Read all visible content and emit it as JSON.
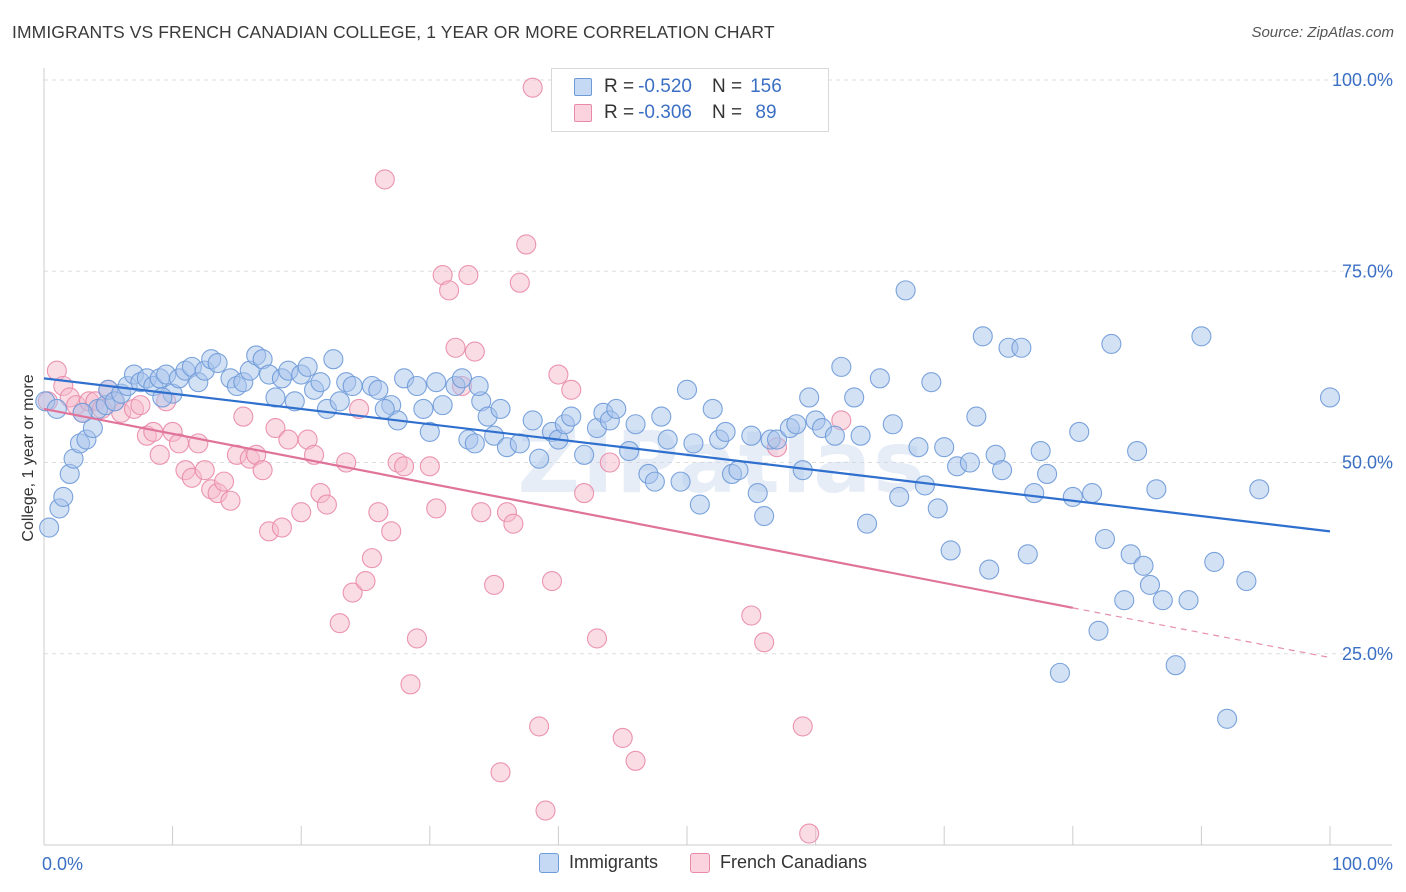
{
  "title": "IMMIGRANTS VS FRENCH CANADIAN COLLEGE, 1 YEAR OR MORE CORRELATION CHART",
  "source": "Source: ZipAtlas.com",
  "watermark": "ZIPatlas",
  "colors": {
    "blue_fill": "#a8c4ec",
    "blue_stroke": "#6e9ad8",
    "blue_line": "#2f6fce",
    "pink_fill": "#f6b9cb",
    "pink_stroke": "#e98aa8",
    "pink_line": "#e0739a",
    "axis_text": "#3b6fc4",
    "grid": "#dddddd"
  },
  "legend_top": {
    "series": [
      {
        "r_label": "R = ",
        "r_value": "-0.520",
        "n_label": "N = ",
        "n_value": "156",
        "color": "blue"
      },
      {
        "r_label": "R = ",
        "r_value": "-0.306",
        "n_label": "N = ",
        "n_value": " 89",
        "color": "pink"
      }
    ]
  },
  "legend_bottom": {
    "items": [
      {
        "label": "Immigrants",
        "color": "blue"
      },
      {
        "label": "French Canadians",
        "color": "pink"
      }
    ]
  },
  "chart_data": {
    "type": "scatter",
    "title": "IMMIGRANTS VS FRENCH CANADIAN COLLEGE, 1 YEAR OR MORE CORRELATION CHART",
    "xlabel": "",
    "ylabel": "College, 1 year or more",
    "xlim": [
      0,
      100
    ],
    "ylim": [
      0,
      100
    ],
    "x_tick_labels": [
      {
        "value": 0,
        "label": "0.0%"
      },
      {
        "value": 100,
        "label": "100.0%"
      }
    ],
    "y_tick_labels": [
      {
        "value": 25,
        "label": "25.0%"
      },
      {
        "value": 50,
        "label": "50.0%"
      },
      {
        "value": 75,
        "label": "75.0%"
      },
      {
        "value": 100,
        "label": "100.0%"
      }
    ],
    "grid": true,
    "legend_position": "top-center",
    "series": [
      {
        "name": "Immigrants",
        "color": "blue",
        "r": -0.52,
        "n": 156,
        "trend": {
          "x": [
            0,
            100
          ],
          "y": [
            61.0,
            41.0
          ]
        },
        "points": [
          [
            0.4,
            41.5
          ],
          [
            1.2,
            44.0
          ],
          [
            1.5,
            45.5
          ],
          [
            2.0,
            48.5
          ],
          [
            2.3,
            50.5
          ],
          [
            2.8,
            52.5
          ],
          [
            3.3,
            53.0
          ],
          [
            3.8,
            54.5
          ],
          [
            4.2,
            57.0
          ],
          [
            4.8,
            57.5
          ],
          [
            5.0,
            59.5
          ],
          [
            5.5,
            58.0
          ],
          [
            6.0,
            59.0
          ],
          [
            6.5,
            60.0
          ],
          [
            7.0,
            61.5
          ],
          [
            7.5,
            60.5
          ],
          [
            8.0,
            61.0
          ],
          [
            8.5,
            60.0
          ],
          [
            9.0,
            61.0
          ],
          [
            9.5,
            61.5
          ],
          [
            10.0,
            59.0
          ],
          [
            10.5,
            61.0
          ],
          [
            11.0,
            62.0
          ],
          [
            11.5,
            62.5
          ],
          [
            12.0,
            60.5
          ],
          [
            12.5,
            62.0
          ],
          [
            13.0,
            63.5
          ],
          [
            13.5,
            63.0
          ],
          [
            14.5,
            61.0
          ],
          [
            15.0,
            60.0
          ],
          [
            15.5,
            60.5
          ],
          [
            16.0,
            62.0
          ],
          [
            16.5,
            64.0
          ],
          [
            17.0,
            63.5
          ],
          [
            17.5,
            61.5
          ],
          [
            18.0,
            58.5
          ],
          [
            18.5,
            61.0
          ],
          [
            19.0,
            62.0
          ],
          [
            19.5,
            58.0
          ],
          [
            20.0,
            61.5
          ],
          [
            20.5,
            62.5
          ],
          [
            21.0,
            59.5
          ],
          [
            21.5,
            60.5
          ],
          [
            22.0,
            57.0
          ],
          [
            22.5,
            63.5
          ],
          [
            23.0,
            58.0
          ],
          [
            23.5,
            60.5
          ],
          [
            24.0,
            60.0
          ],
          [
            25.5,
            60.0
          ],
          [
            26.0,
            59.5
          ],
          [
            27.0,
            57.5
          ],
          [
            27.5,
            55.5
          ],
          [
            28.0,
            61.0
          ],
          [
            29.0,
            60.0
          ],
          [
            29.5,
            57.0
          ],
          [
            30.0,
            54.0
          ],
          [
            30.5,
            60.5
          ],
          [
            31.0,
            57.5
          ],
          [
            32.0,
            60.0
          ],
          [
            32.5,
            61.0
          ],
          [
            33.0,
            53.0
          ],
          [
            33.5,
            52.5
          ],
          [
            34.0,
            58.0
          ],
          [
            34.5,
            56.0
          ],
          [
            35.0,
            53.5
          ],
          [
            35.5,
            57.0
          ],
          [
            36.0,
            52.0
          ],
          [
            37.0,
            52.5
          ],
          [
            38.0,
            55.5
          ],
          [
            38.5,
            50.5
          ],
          [
            39.5,
            54.0
          ],
          [
            40.0,
            53.0
          ],
          [
            40.5,
            55.0
          ],
          [
            41.0,
            56.0
          ],
          [
            42.0,
            51.0
          ],
          [
            43.0,
            54.5
          ],
          [
            43.5,
            56.5
          ],
          [
            44.0,
            55.5
          ],
          [
            44.5,
            57.0
          ],
          [
            45.5,
            51.5
          ],
          [
            46.0,
            55.0
          ],
          [
            47.0,
            48.5
          ],
          [
            47.5,
            47.5
          ],
          [
            48.0,
            56.0
          ],
          [
            48.5,
            53.0
          ],
          [
            49.5,
            47.5
          ],
          [
            50.0,
            59.5
          ],
          [
            50.5,
            52.5
          ],
          [
            51.0,
            44.5
          ],
          [
            52.0,
            57.0
          ],
          [
            52.5,
            53.0
          ],
          [
            53.0,
            54.0
          ],
          [
            53.5,
            48.5
          ],
          [
            54.0,
            49.0
          ],
          [
            55.0,
            53.5
          ],
          [
            55.5,
            46.0
          ],
          [
            56.0,
            43.0
          ],
          [
            56.5,
            53.0
          ],
          [
            57.0,
            53.0
          ],
          [
            58.0,
            54.5
          ],
          [
            58.5,
            55.0
          ],
          [
            59.0,
            49.0
          ],
          [
            59.5,
            58.5
          ],
          [
            60.0,
            55.5
          ],
          [
            60.5,
            54.5
          ],
          [
            61.5,
            53.5
          ],
          [
            62.0,
            62.5
          ],
          [
            63.0,
            58.5
          ],
          [
            63.5,
            53.5
          ],
          [
            64.0,
            42.0
          ],
          [
            65.0,
            61.0
          ],
          [
            66.0,
            55.0
          ],
          [
            66.5,
            45.5
          ],
          [
            67.0,
            72.5
          ],
          [
            68.0,
            52.0
          ],
          [
            68.5,
            47.0
          ],
          [
            69.0,
            60.5
          ],
          [
            69.5,
            44.0
          ],
          [
            70.0,
            52.0
          ],
          [
            70.5,
            38.5
          ],
          [
            71.0,
            49.5
          ],
          [
            72.0,
            50.0
          ],
          [
            72.5,
            56.0
          ],
          [
            73.0,
            66.5
          ],
          [
            73.5,
            36.0
          ],
          [
            74.0,
            51.0
          ],
          [
            74.5,
            49.0
          ],
          [
            75.0,
            65.0
          ],
          [
            76.0,
            65.0
          ],
          [
            76.5,
            38.0
          ],
          [
            77.0,
            46.0
          ],
          [
            77.5,
            51.5
          ],
          [
            78.0,
            48.5
          ],
          [
            79.0,
            22.5
          ],
          [
            80.0,
            45.5
          ],
          [
            80.5,
            54.0
          ],
          [
            81.5,
            46.0
          ],
          [
            82.0,
            28.0
          ],
          [
            82.5,
            40.0
          ],
          [
            83.0,
            65.5
          ],
          [
            84.0,
            32.0
          ],
          [
            84.5,
            38.0
          ],
          [
            85.0,
            51.5
          ],
          [
            85.5,
            36.5
          ],
          [
            86.0,
            34.0
          ],
          [
            86.5,
            46.5
          ],
          [
            87.0,
            32.0
          ],
          [
            88.0,
            23.5
          ],
          [
            89.0,
            32.0
          ],
          [
            90.0,
            66.5
          ],
          [
            91.0,
            37.0
          ],
          [
            92.0,
            16.5
          ],
          [
            93.5,
            34.5
          ],
          [
            94.5,
            46.5
          ],
          [
            100.0,
            58.5
          ],
          [
            0.1,
            58.0
          ],
          [
            1.0,
            57.0
          ],
          [
            3.0,
            56.5
          ],
          [
            9.2,
            58.5
          ],
          [
            26.5,
            57.0
          ],
          [
            33.8,
            60.0
          ]
        ]
      },
      {
        "name": "French Canadians",
        "color": "pink",
        "r": -0.306,
        "n": 89,
        "trend": {
          "x": [
            0,
            80
          ],
          "y": [
            57.0,
            31.0
          ]
        },
        "trend_dashed": {
          "x": [
            80,
            100
          ],
          "y": [
            31.0,
            24.5
          ]
        },
        "points": [
          [
            0.3,
            58.0
          ],
          [
            1.0,
            62.0
          ],
          [
            1.5,
            60.0
          ],
          [
            2.0,
            58.5
          ],
          [
            2.5,
            57.5
          ],
          [
            3.0,
            56.5
          ],
          [
            3.5,
            58.0
          ],
          [
            4.0,
            58.0
          ],
          [
            4.5,
            57.0
          ],
          [
            5.0,
            59.5
          ],
          [
            5.5,
            58.0
          ],
          [
            6.0,
            56.5
          ],
          [
            7.0,
            57.0
          ],
          [
            7.5,
            57.5
          ],
          [
            8.0,
            53.5
          ],
          [
            8.5,
            54.0
          ],
          [
            9.0,
            51.0
          ],
          [
            9.5,
            58.0
          ],
          [
            10.0,
            54.0
          ],
          [
            10.5,
            52.5
          ],
          [
            11.0,
            49.0
          ],
          [
            11.5,
            48.0
          ],
          [
            12.0,
            52.5
          ],
          [
            12.5,
            49.0
          ],
          [
            13.0,
            46.5
          ],
          [
            13.5,
            46.0
          ],
          [
            14.0,
            47.5
          ],
          [
            14.5,
            45.0
          ],
          [
            15.0,
            51.0
          ],
          [
            15.5,
            56.0
          ],
          [
            16.0,
            50.5
          ],
          [
            16.5,
            51.0
          ],
          [
            17.0,
            49.0
          ],
          [
            17.5,
            41.0
          ],
          [
            18.0,
            54.5
          ],
          [
            18.5,
            41.5
          ],
          [
            19.0,
            53.0
          ],
          [
            20.0,
            43.5
          ],
          [
            20.5,
            53.0
          ],
          [
            21.0,
            51.0
          ],
          [
            21.5,
            46.0
          ],
          [
            22.0,
            44.5
          ],
          [
            23.0,
            29.0
          ],
          [
            23.5,
            50.0
          ],
          [
            24.0,
            33.0
          ],
          [
            24.5,
            57.0
          ],
          [
            25.0,
            34.5
          ],
          [
            25.5,
            37.5
          ],
          [
            26.0,
            43.5
          ],
          [
            26.5,
            87.0
          ],
          [
            27.0,
            41.0
          ],
          [
            27.5,
            50.0
          ],
          [
            28.0,
            49.5
          ],
          [
            28.5,
            21.0
          ],
          [
            29.0,
            27.0
          ],
          [
            30.0,
            49.5
          ],
          [
            30.5,
            44.0
          ],
          [
            31.0,
            74.5
          ],
          [
            31.5,
            72.5
          ],
          [
            32.0,
            65.0
          ],
          [
            32.5,
            60.0
          ],
          [
            33.0,
            74.5
          ],
          [
            33.5,
            64.5
          ],
          [
            34.0,
            43.5
          ],
          [
            35.0,
            34.0
          ],
          [
            35.5,
            9.5
          ],
          [
            36.0,
            43.5
          ],
          [
            36.5,
            42.0
          ],
          [
            37.0,
            73.5
          ],
          [
            37.5,
            78.5
          ],
          [
            38.0,
            99.0
          ],
          [
            38.5,
            15.5
          ],
          [
            39.0,
            4.5
          ],
          [
            39.5,
            34.5
          ],
          [
            40.0,
            61.5
          ],
          [
            41.0,
            59.5
          ],
          [
            42.0,
            46.0
          ],
          [
            43.0,
            27.0
          ],
          [
            44.0,
            50.0
          ],
          [
            45.0,
            14.0
          ],
          [
            46.0,
            11.0
          ],
          [
            55.0,
            30.0
          ],
          [
            56.0,
            26.5
          ],
          [
            57.0,
            52.0
          ],
          [
            59.0,
            15.5
          ],
          [
            59.5,
            1.5
          ],
          [
            62.0,
            55.5
          ]
        ]
      }
    ]
  }
}
